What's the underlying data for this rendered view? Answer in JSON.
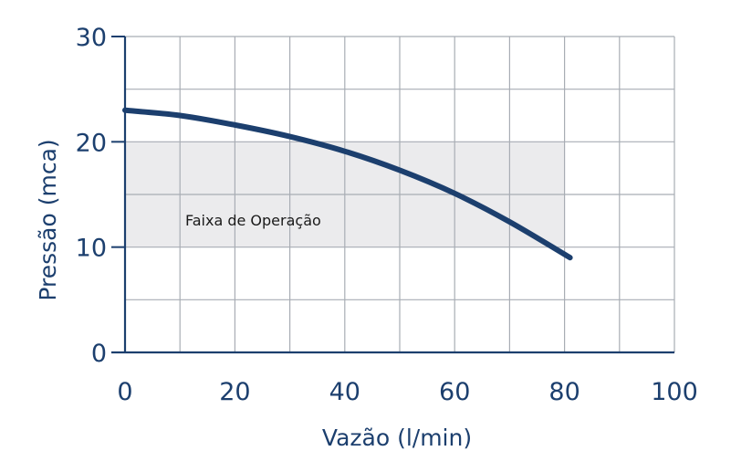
{
  "chart_data": {
    "type": "line",
    "title": "",
    "xlabel": "Vazão (l/min)",
    "ylabel": "Pressão (mca)",
    "xlim": [
      0,
      100
    ],
    "ylim": [
      0,
      30
    ],
    "xticks": [
      "0",
      "20",
      "40",
      "60",
      "80",
      "100"
    ],
    "yticks": [
      "0",
      "10",
      "20",
      "30"
    ],
    "grid": true,
    "series": [
      {
        "x": [
          0,
          10,
          20,
          30,
          40,
          50,
          60,
          70,
          81
        ],
        "y": [
          23,
          22.5,
          21.6,
          20.5,
          19.1,
          17.3,
          15.1,
          12.4,
          9
        ]
      }
    ],
    "region": {
      "label": "Faixa de Operação",
      "x": [
        0,
        80
      ],
      "y": [
        10,
        20
      ]
    },
    "colors": {
      "line": "#1c3f6e",
      "text": "#1c3f6e",
      "axis": "#1c3f6e",
      "grid": "#a8adb4",
      "region": "#ebebed"
    }
  }
}
